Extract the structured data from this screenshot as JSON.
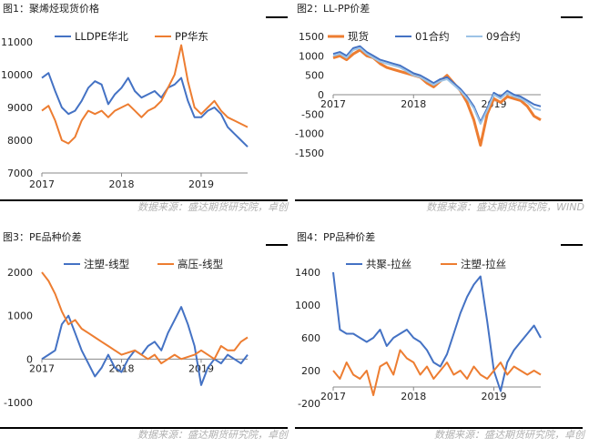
{
  "panels": [
    {
      "title": "图1：聚烯烃现货价格",
      "source": "数据来源：盛达期货研究院，卓创"
    },
    {
      "title": "图2：LL-PP价差",
      "source": "数据来源：盛达期货研究院，WIND"
    },
    {
      "title": "图3：PE品种价差",
      "source": "数据来源：盛达期货研究院，卓创"
    },
    {
      "title": "图4：PP品种价差",
      "source": "数据来源：盛达期货研究院，卓创"
    }
  ],
  "colors": {
    "blue": "#4472c4",
    "orange": "#ed7d31",
    "lightblue": "#9dc3e6"
  },
  "chart_data": [
    {
      "type": "line",
      "x_ticks": [
        "2017",
        "2018",
        "2019"
      ],
      "y_ticks": [
        7000,
        8000,
        9000,
        10000,
        11000
      ],
      "ylim": [
        7000,
        11000
      ],
      "xrange": [
        "2017-01",
        "2019-08"
      ],
      "series": [
        {
          "name": "LLDPE华北",
          "color": "blue",
          "x": [
            "2017-01",
            "2017-02",
            "2017-03",
            "2017-04",
            "2017-05",
            "2017-06",
            "2017-07",
            "2017-08",
            "2017-09",
            "2017-10",
            "2017-11",
            "2017-12",
            "2018-01",
            "2018-02",
            "2018-03",
            "2018-04",
            "2018-05",
            "2018-06",
            "2018-07",
            "2018-08",
            "2018-09",
            "2018-10",
            "2018-11",
            "2018-12",
            "2019-01",
            "2019-02",
            "2019-03",
            "2019-04",
            "2019-05",
            "2019-06",
            "2019-07",
            "2019-08"
          ],
          "values": [
            9900,
            10050,
            9500,
            9000,
            8800,
            8900,
            9200,
            9600,
            9800,
            9700,
            9100,
            9400,
            9600,
            9900,
            9500,
            9300,
            9400,
            9500,
            9300,
            9600,
            9700,
            9900,
            9200,
            8700,
            8700,
            8900,
            9000,
            8800,
            8400,
            8200,
            8000,
            7800
          ]
        },
        {
          "name": "PP华东",
          "color": "orange",
          "x": [
            "2017-01",
            "2017-02",
            "2017-03",
            "2017-04",
            "2017-05",
            "2017-06",
            "2017-07",
            "2017-08",
            "2017-09",
            "2017-10",
            "2017-11",
            "2017-12",
            "2018-01",
            "2018-02",
            "2018-03",
            "2018-04",
            "2018-05",
            "2018-06",
            "2018-07",
            "2018-08",
            "2018-09",
            "2018-10",
            "2018-11",
            "2018-12",
            "2019-01",
            "2019-02",
            "2019-03",
            "2019-04",
            "2019-05",
            "2019-06",
            "2019-07",
            "2019-08"
          ],
          "values": [
            8900,
            9050,
            8600,
            8000,
            7900,
            8100,
            8600,
            8900,
            8800,
            8900,
            8700,
            8900,
            9000,
            9100,
            8900,
            8700,
            8900,
            9000,
            9200,
            9600,
            10000,
            10900,
            9800,
            9000,
            8800,
            9000,
            9200,
            8900,
            8700,
            8600,
            8500,
            8400
          ]
        }
      ]
    },
    {
      "type": "line",
      "x_ticks": [
        "2017",
        "2018",
        "2019"
      ],
      "y_ticks": [
        -1500,
        -1000,
        -500,
        0,
        500,
        1000,
        1500
      ],
      "ylim": [
        -1500,
        1500
      ],
      "xrange": [
        "2017-01",
        "2019-08"
      ],
      "series": [
        {
          "name": "现货",
          "color": "orange",
          "x": [
            "2017-01",
            "2017-02",
            "2017-03",
            "2017-04",
            "2017-05",
            "2017-06",
            "2017-07",
            "2017-08",
            "2017-09",
            "2017-10",
            "2017-11",
            "2017-12",
            "2018-01",
            "2018-02",
            "2018-03",
            "2018-04",
            "2018-05",
            "2018-06",
            "2018-07",
            "2018-08",
            "2018-09",
            "2018-10",
            "2018-11",
            "2018-12",
            "2019-01",
            "2019-02",
            "2019-03",
            "2019-04",
            "2019-05",
            "2019-06",
            "2019-07",
            "2019-08"
          ],
          "values": [
            950,
            1000,
            900,
            1050,
            1150,
            1000,
            950,
            800,
            700,
            650,
            600,
            550,
            500,
            450,
            300,
            200,
            350,
            500,
            300,
            100,
            -200,
            -650,
            -1300,
            -500,
            -100,
            -200,
            -50,
            -100,
            -150,
            -300,
            -550,
            -650
          ]
        },
        {
          "name": "01合约",
          "color": "blue",
          "x": [
            "2017-01",
            "2017-02",
            "2017-03",
            "2017-04",
            "2017-05",
            "2017-06",
            "2017-07",
            "2017-08",
            "2017-09",
            "2017-10",
            "2017-11",
            "2017-12",
            "2018-01",
            "2018-02",
            "2018-03",
            "2018-04",
            "2018-05",
            "2018-06",
            "2018-07",
            "2018-08",
            "2018-09",
            "2018-10",
            "2018-11",
            "2018-12",
            "2019-01",
            "2019-02",
            "2019-03",
            "2019-04",
            "2019-05",
            "2019-06",
            "2019-07",
            "2019-08"
          ],
          "values": [
            1050,
            1100,
            1000,
            1200,
            1250,
            1100,
            1000,
            900,
            850,
            800,
            750,
            650,
            550,
            500,
            400,
            300,
            400,
            450,
            300,
            150,
            -50,
            -300,
            -700,
            -350,
            50,
            -50,
            100,
            0,
            -50,
            -150,
            -250,
            -300
          ]
        },
        {
          "name": "09合约",
          "color": "lightblue",
          "x": [
            "2017-01",
            "2017-02",
            "2017-03",
            "2017-04",
            "2017-05",
            "2017-06",
            "2017-07",
            "2017-08",
            "2017-09",
            "2017-10",
            "2017-11",
            "2017-12",
            "2018-01",
            "2018-02",
            "2018-03",
            "2018-04",
            "2018-05",
            "2018-06",
            "2018-07",
            "2018-08",
            "2018-09",
            "2018-10",
            "2018-11",
            "2018-12",
            "2019-01",
            "2019-02",
            "2019-03",
            "2019-04",
            "2019-05",
            "2019-06",
            "2019-07",
            "2019-08"
          ],
          "values": [
            1000,
            1050,
            950,
            1150,
            1200,
            1050,
            950,
            850,
            800,
            750,
            700,
            600,
            500,
            450,
            350,
            250,
            350,
            400,
            250,
            100,
            -100,
            -350,
            -750,
            -400,
            0,
            -100,
            50,
            -50,
            -100,
            -200,
            -350,
            -400
          ]
        }
      ]
    },
    {
      "type": "line",
      "x_ticks": [
        "2017",
        "2018",
        "2019"
      ],
      "y_ticks": [
        -1000,
        0,
        1000,
        2000
      ],
      "ylim": [
        -1000,
        2000
      ],
      "xrange": [
        "2017-01",
        "2019-08"
      ],
      "series": [
        {
          "name": "注塑-线型",
          "color": "blue",
          "x": [
            "2017-01",
            "2017-02",
            "2017-03",
            "2017-04",
            "2017-05",
            "2017-06",
            "2017-07",
            "2017-08",
            "2017-09",
            "2017-10",
            "2017-11",
            "2017-12",
            "2018-01",
            "2018-02",
            "2018-03",
            "2018-04",
            "2018-05",
            "2018-06",
            "2018-07",
            "2018-08",
            "2018-09",
            "2018-10",
            "2018-11",
            "2018-12",
            "2019-01",
            "2019-02",
            "2019-03",
            "2019-04",
            "2019-05",
            "2019-06",
            "2019-07",
            "2019-08"
          ],
          "values": [
            0,
            100,
            200,
            800,
            1000,
            600,
            200,
            -100,
            -400,
            -200,
            100,
            -200,
            -300,
            0,
            200,
            100,
            300,
            400,
            200,
            600,
            900,
            1200,
            800,
            300,
            -600,
            -200,
            0,
            -100,
            100,
            0,
            -100,
            100
          ]
        },
        {
          "name": "高压-线型",
          "color": "orange",
          "x": [
            "2017-01",
            "2017-02",
            "2017-03",
            "2017-04",
            "2017-05",
            "2017-06",
            "2017-07",
            "2017-08",
            "2017-09",
            "2017-10",
            "2017-11",
            "2017-12",
            "2018-01",
            "2018-02",
            "2018-03",
            "2018-04",
            "2018-05",
            "2018-06",
            "2018-07",
            "2018-08",
            "2018-09",
            "2018-10",
            "2018-11",
            "2018-12",
            "2019-01",
            "2019-02",
            "2019-03",
            "2019-04",
            "2019-05",
            "2019-06",
            "2019-07",
            "2019-08"
          ],
          "values": [
            2000,
            1800,
            1500,
            1100,
            800,
            900,
            700,
            600,
            500,
            400,
            300,
            200,
            100,
            150,
            200,
            100,
            0,
            100,
            -100,
            0,
            100,
            0,
            50,
            100,
            200,
            100,
            0,
            300,
            200,
            200,
            400,
            500
          ]
        }
      ]
    },
    {
      "type": "line",
      "x_ticks": [
        "2017",
        "2018",
        "2019"
      ],
      "y_ticks": [
        -200,
        200,
        600,
        1000,
        1400
      ],
      "ylim": [
        -200,
        1400
      ],
      "xrange": [
        "2017-01",
        "2019-08"
      ],
      "series": [
        {
          "name": "共聚-拉丝",
          "color": "blue",
          "x": [
            "2017-01",
            "2017-02",
            "2017-03",
            "2017-04",
            "2017-05",
            "2017-06",
            "2017-07",
            "2017-08",
            "2017-09",
            "2017-10",
            "2017-11",
            "2017-12",
            "2018-01",
            "2018-02",
            "2018-03",
            "2018-04",
            "2018-05",
            "2018-06",
            "2018-07",
            "2018-08",
            "2018-09",
            "2018-10",
            "2018-11",
            "2018-12",
            "2019-01",
            "2019-02",
            "2019-03",
            "2019-04",
            "2019-05",
            "2019-06",
            "2019-07",
            "2019-08"
          ],
          "values": [
            1400,
            700,
            650,
            650,
            600,
            550,
            600,
            700,
            500,
            600,
            650,
            700,
            600,
            550,
            450,
            300,
            250,
            400,
            650,
            900,
            1100,
            1250,
            1350,
            800,
            200,
            -50,
            300,
            450,
            550,
            650,
            750,
            600
          ]
        },
        {
          "name": "注塑-拉丝",
          "color": "orange",
          "x": [
            "2017-01",
            "2017-02",
            "2017-03",
            "2017-04",
            "2017-05",
            "2017-06",
            "2017-07",
            "2017-08",
            "2017-09",
            "2017-10",
            "2017-11",
            "2017-12",
            "2018-01",
            "2018-02",
            "2018-03",
            "2018-04",
            "2018-05",
            "2018-06",
            "2018-07",
            "2018-08",
            "2018-09",
            "2018-10",
            "2018-11",
            "2018-12",
            "2019-01",
            "2019-02",
            "2019-03",
            "2019-04",
            "2019-05",
            "2019-06",
            "2019-07",
            "2019-08"
          ],
          "values": [
            200,
            100,
            300,
            150,
            100,
            200,
            -100,
            250,
            300,
            150,
            450,
            350,
            300,
            150,
            250,
            100,
            200,
            300,
            150,
            200,
            100,
            250,
            150,
            100,
            200,
            300,
            150,
            250,
            200,
            150,
            200,
            150
          ]
        }
      ]
    }
  ]
}
